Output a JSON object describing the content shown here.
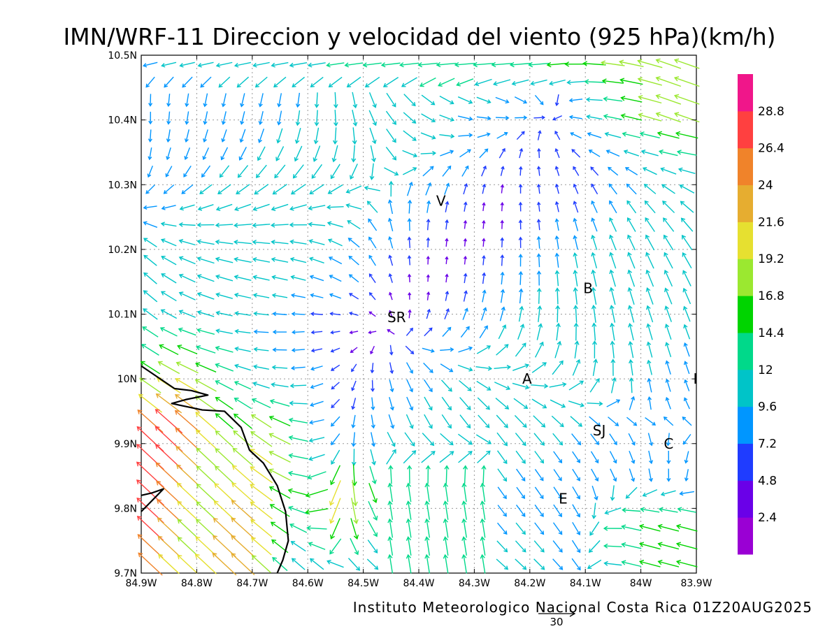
{
  "chart_data": {
    "type": "vector-field",
    "title": "IMN/WRF-11 Direccion y velocidad del viento (925 hPa)(km/h)",
    "footer": "Instituto Meteorologico Nacional Costa Rica 01Z20AUG2025",
    "x_ticks": [
      {
        "value": -84.9,
        "label": "84.9W"
      },
      {
        "value": -84.8,
        "label": "84.8W"
      },
      {
        "value": -84.7,
        "label": "84.7W"
      },
      {
        "value": -84.6,
        "label": "84.6W"
      },
      {
        "value": -84.5,
        "label": "84.5W"
      },
      {
        "value": -84.4,
        "label": "84.4W"
      },
      {
        "value": -84.3,
        "label": "84.3W"
      },
      {
        "value": -84.2,
        "label": "84.2W"
      },
      {
        "value": -84.1,
        "label": "84.1W"
      },
      {
        "value": -84.0,
        "label": "84W"
      },
      {
        "value": -83.9,
        "label": "83.9W"
      }
    ],
    "y_ticks": [
      {
        "value": 9.7,
        "label": "9.7N"
      },
      {
        "value": 9.8,
        "label": "9.8N"
      },
      {
        "value": 9.9,
        "label": "9.9N"
      },
      {
        "value": 10.0,
        "label": "10N"
      },
      {
        "value": 10.1,
        "label": "10.1N"
      },
      {
        "value": 10.2,
        "label": "10.2N"
      },
      {
        "value": 10.3,
        "label": "10.3N"
      },
      {
        "value": 10.4,
        "label": "10.4N"
      },
      {
        "value": 10.5,
        "label": "10.5N"
      }
    ],
    "xlim": [
      -84.9,
      -83.9
    ],
    "ylim": [
      9.7,
      10.5
    ],
    "grid": true,
    "colorbar": {
      "levels": [
        "2.4",
        "4.8",
        "7.2",
        "9.6",
        "12",
        "14.4",
        "16.8",
        "19.2",
        "21.6",
        "24",
        "26.4",
        "28.8"
      ],
      "colors": [
        "#9a00d4",
        "#6a00e8",
        "#1f3cff",
        "#0096ff",
        "#00c4c8",
        "#00d98a",
        "#00d400",
        "#9be830",
        "#e6e030",
        "#e6ad30",
        "#f0832a",
        "#ff4040",
        "#f0168a"
      ]
    },
    "reference_vector": {
      "label": "30",
      "speed": 30
    },
    "places": [
      {
        "label": "V",
        "lon": -84.36,
        "lat": 10.275
      },
      {
        "label": "B",
        "lon": -84.095,
        "lat": 10.14
      },
      {
        "label": "SR",
        "lon": -84.44,
        "lat": 10.095
      },
      {
        "label": "A",
        "lon": -84.205,
        "lat": 10.0
      },
      {
        "label": "I",
        "lon": -83.902,
        "lat": 10.0
      },
      {
        "label": "SJ",
        "lon": -84.075,
        "lat": 9.92
      },
      {
        "label": "C",
        "lon": -83.95,
        "lat": 9.9
      },
      {
        "label": "E",
        "lon": -84.14,
        "lat": 9.815
      }
    ],
    "coastline": [
      [
        -84.9,
        10.02
      ],
      [
        -84.84,
        9.985
      ],
      [
        -84.81,
        9.982
      ],
      [
        -84.78,
        9.975
      ],
      [
        -84.82,
        9.968
      ],
      [
        -84.845,
        9.962
      ],
      [
        -84.79,
        9.952
      ],
      [
        -84.75,
        9.95
      ],
      [
        -84.72,
        9.925
      ],
      [
        -84.705,
        9.89
      ],
      [
        -84.68,
        9.87
      ],
      [
        -84.655,
        9.835
      ],
      [
        -84.64,
        9.795
      ],
      [
        -84.635,
        9.75
      ],
      [
        -84.645,
        9.72
      ],
      [
        -84.655,
        9.7
      ]
    ],
    "coastline2": [
      [
        -84.9,
        9.795
      ],
      [
        -84.86,
        9.83
      ],
      [
        -84.88,
        9.824
      ],
      [
        -84.9,
        9.82
      ]
    ]
  }
}
